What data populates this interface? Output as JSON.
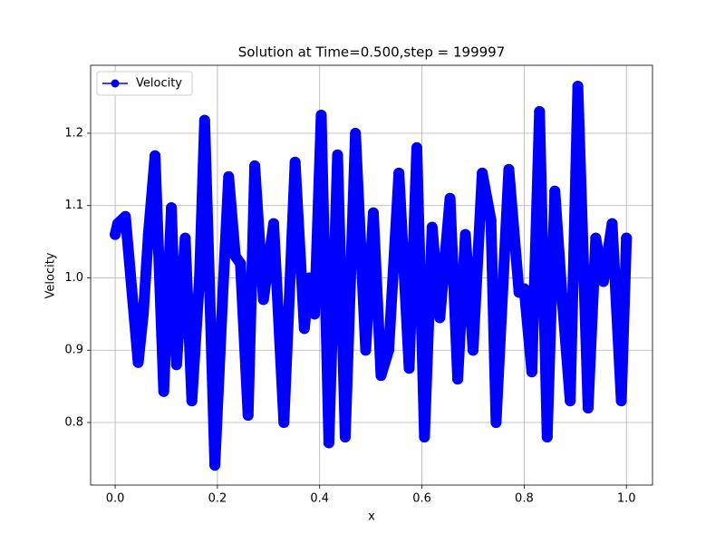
{
  "chart_data": {
    "type": "line",
    "title": "Solution at Time=0.500,step = 199997",
    "x_label": "x",
    "y_label": "Velocity",
    "x": [
      0,
      0.005,
      0.02,
      0.045,
      0.055,
      0.065,
      0.078,
      0.095,
      0.11,
      0.12,
      0.137,
      0.15,
      0.165,
      0.175,
      0.195,
      0.21,
      0.222,
      0.235,
      0.245,
      0.26,
      0.273,
      0.29,
      0.31,
      0.33,
      0.352,
      0.37,
      0.38,
      0.39,
      0.403,
      0.418,
      0.435,
      0.45,
      0.47,
      0.49,
      0.505,
      0.52,
      0.535,
      0.555,
      0.575,
      0.59,
      0.605,
      0.62,
      0.635,
      0.655,
      0.67,
      0.685,
      0.7,
      0.718,
      0.735,
      0.745,
      0.77,
      0.79,
      0.8,
      0.815,
      0.83,
      0.845,
      0.86,
      0.875,
      0.89,
      0.905,
      0.925,
      0.94,
      0.955,
      0.972,
      0.99,
      1.0
    ],
    "series": [
      {
        "name": "Velocity",
        "color": "#0000ff",
        "values": [
          1.06,
          1.075,
          1.085,
          0.883,
          0.95,
          1.06,
          1.169,
          0.843,
          1.097,
          0.88,
          1.055,
          0.83,
          1.0,
          1.218,
          0.741,
          0.97,
          1.14,
          1.03,
          1.02,
          0.81,
          1.155,
          0.97,
          1.075,
          0.8,
          1.16,
          0.93,
          1.0,
          0.95,
          1.225,
          0.772,
          1.17,
          0.78,
          1.2,
          0.9,
          1.09,
          0.865,
          0.9,
          1.145,
          0.875,
          1.18,
          0.78,
          1.07,
          0.945,
          1.11,
          0.86,
          1.06,
          0.9,
          1.145,
          1.08,
          0.8,
          1.15,
          0.98,
          0.985,
          0.87,
          1.23,
          0.78,
          1.12,
          0.965,
          0.83,
          1.265,
          0.82,
          1.055,
          0.995,
          1.075,
          0.83,
          1.055
        ]
      }
    ],
    "xlim": [
      -0.048,
      1.051
    ],
    "ylim": [
      0.7135,
      1.294
    ],
    "xticks": [
      {
        "value": 0,
        "label": "0.0"
      },
      {
        "value": 0.2,
        "label": "0.2"
      },
      {
        "value": 0.4,
        "label": "0.4"
      },
      {
        "value": 0.6,
        "label": "0.6"
      },
      {
        "value": 0.8,
        "label": "0.8"
      },
      {
        "value": 1,
        "label": "1.0"
      }
    ],
    "yticks": [
      0.8,
      0.9,
      {
        "value": 1,
        "label": "1.0"
      },
      1.1,
      1.2
    ],
    "grid": true,
    "legend": "upper-left"
  }
}
